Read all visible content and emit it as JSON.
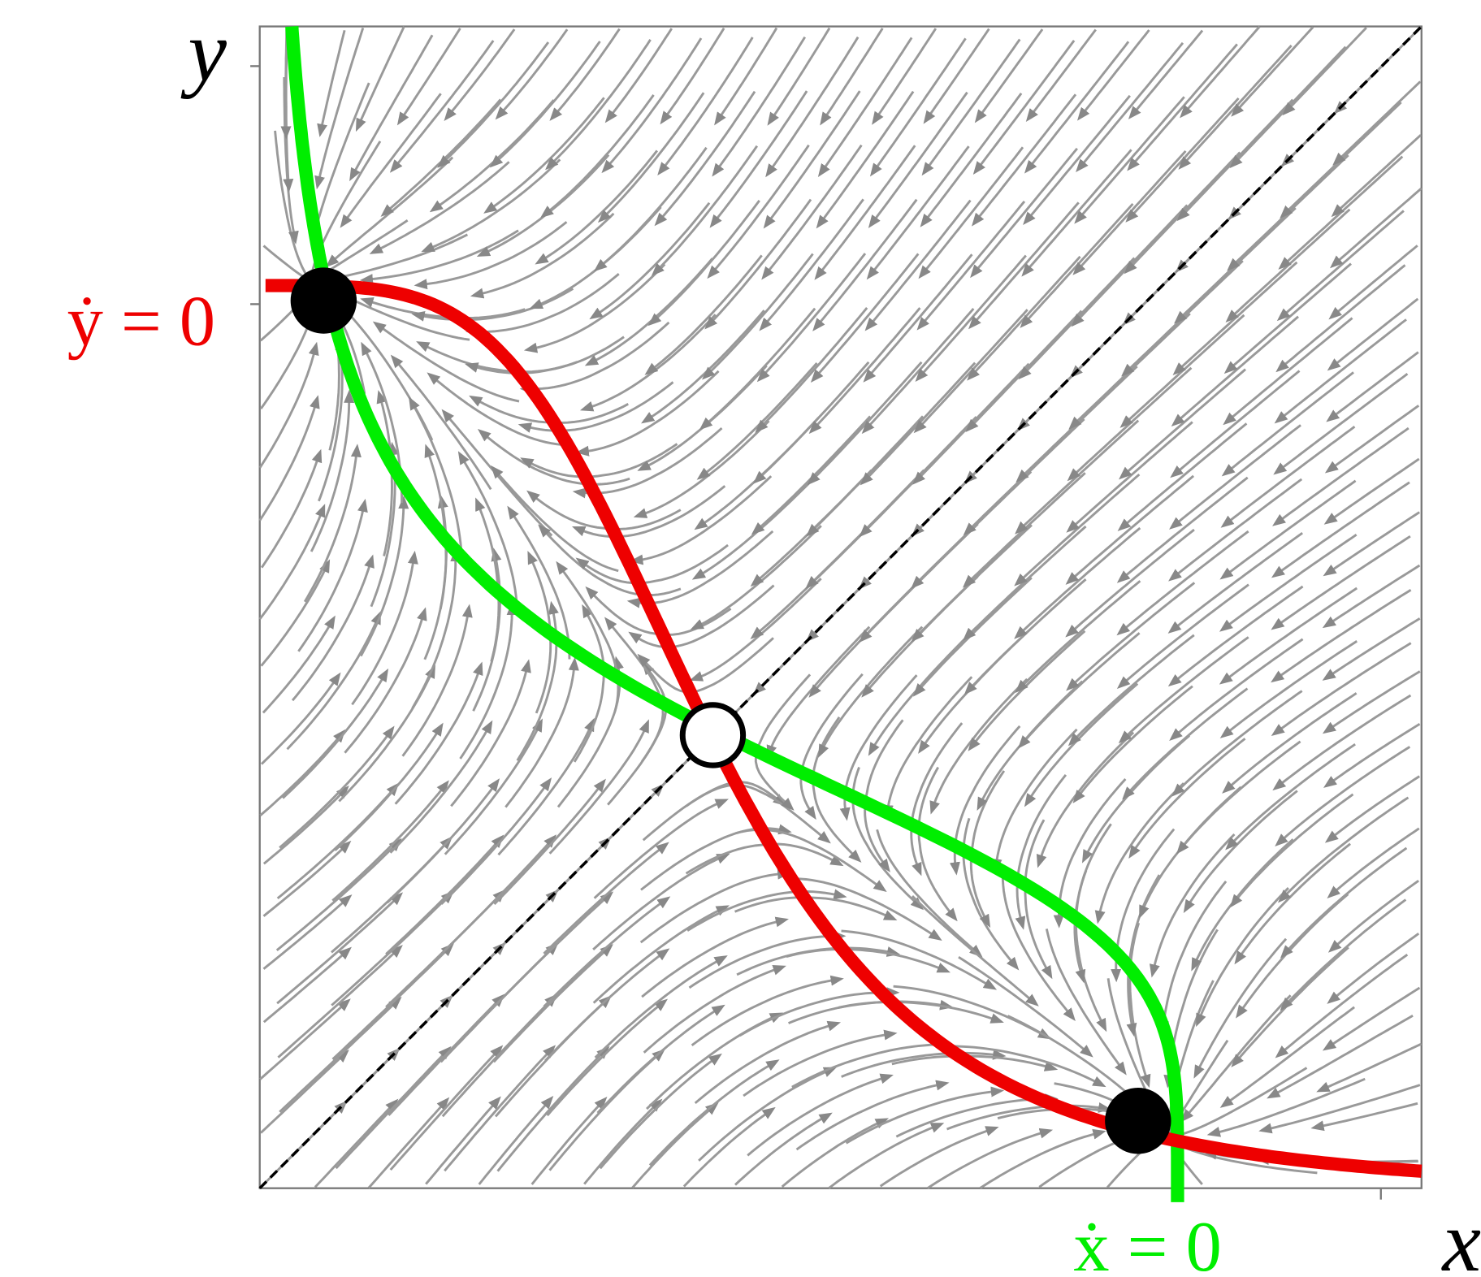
{
  "axes": {
    "y_label": "y",
    "x_label": "x"
  },
  "nullclines": {
    "y_dot": "ẏ = 0",
    "x_dot": "ẋ = 0"
  }
}
